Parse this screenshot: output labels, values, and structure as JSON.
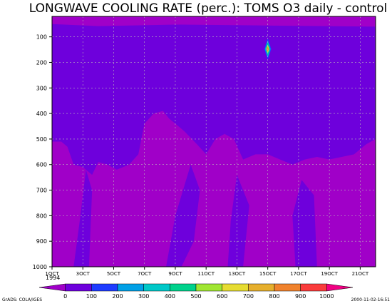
{
  "chart_data": {
    "type": "heatmap",
    "title": "LONGWAVE COOLING RATE (perc.): TOMS O3 daily - control",
    "x": {
      "ticks": [
        "1OCT",
        "3OCT",
        "5OCT",
        "7OCT",
        "9OCT",
        "11OCT",
        "13OCT",
        "15OCT",
        "17OCT",
        "19OCT",
        "21OCT"
      ],
      "year_label": "1994",
      "day_range": [
        1,
        22
      ]
    },
    "y": {
      "ticks": [
        100,
        200,
        300,
        400,
        500,
        600,
        700,
        800,
        900,
        1000
      ],
      "range": [
        1000,
        20
      ],
      "reversed": true
    },
    "grid": true,
    "colorbar": {
      "levels": [
        "0",
        "100",
        "200",
        "300",
        "400",
        "500",
        "600",
        "700",
        "800",
        "900",
        "1000"
      ],
      "colors": [
        "#a000c8",
        "#6e00dc",
        "#1e3cff",
        "#00a0e6",
        "#00c8c8",
        "#00d28c",
        "#a0e632",
        "#e6dc32",
        "#e6af2d",
        "#f0822d",
        "#fa3c3c",
        "#f00082"
      ]
    },
    "fields": {
      "background_color": "#6e00dc",
      "high_region_color": "#a000c8",
      "peak": {
        "day": 15.0,
        "pressure": 148,
        "approx_value": 1000
      }
    },
    "footer_left": "GrADS: COLA/IGES",
    "footer_right": "2000-11-02-16:51"
  }
}
